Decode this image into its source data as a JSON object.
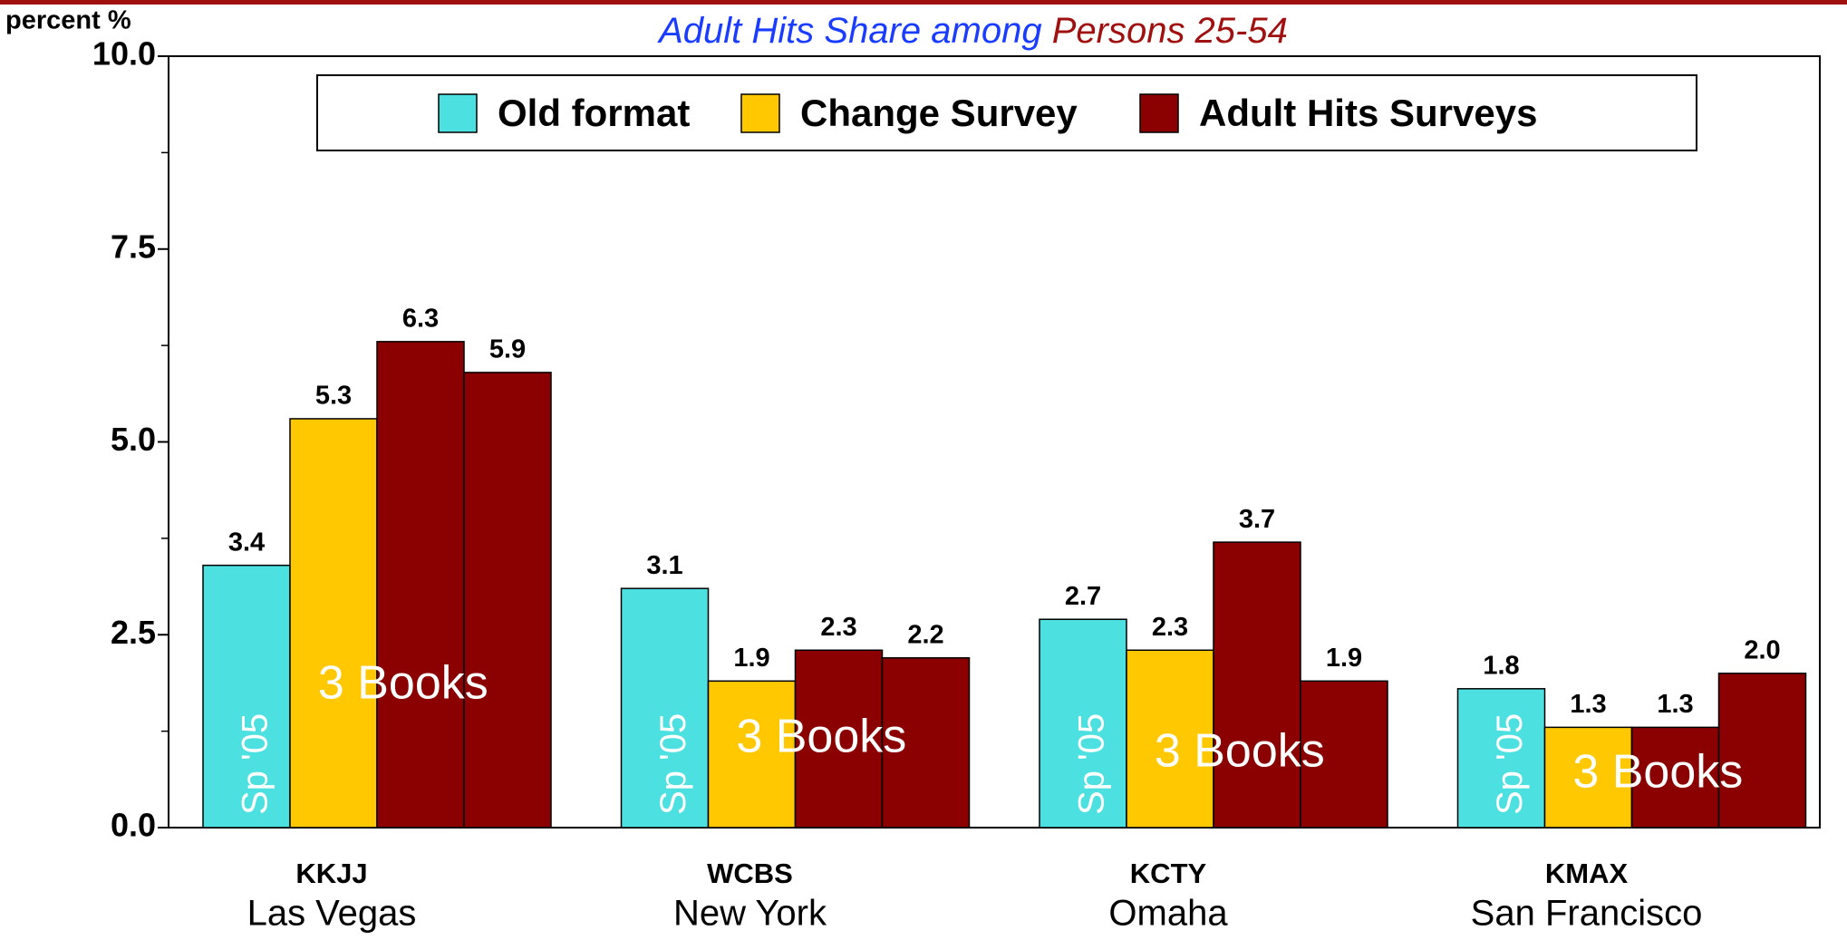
{
  "chart_data": {
    "type": "bar",
    "title": [
      "Adult Hits Share among",
      "Persons 25-54"
    ],
    "y_label": "percent %",
    "categories": [
      "KKJJ",
      "WCBS",
      "KCTY",
      "KMAX"
    ],
    "cities": [
      "Las Vegas",
      "New York",
      "Omaha",
      "San Francisco"
    ],
    "series": [
      {
        "name": "Old format",
        "color": "#4de0e0",
        "values": [
          3.4,
          3.1,
          2.7,
          1.8
        ],
        "value_labels": [
          "3.4",
          "3.1",
          "2.7",
          "1.8"
        ]
      },
      {
        "name": "Change Survey",
        "color": "#ffc800",
        "values": [
          5.3,
          1.9,
          2.3,
          1.3
        ],
        "value_labels": [
          "5.3",
          "1.9",
          "2.3",
          "1.3"
        ]
      },
      {
        "name": "Adult Hits Surveys",
        "color": "#8b0000",
        "values": [
          [
            6.3,
            5.9
          ],
          [
            2.3,
            2.2
          ],
          [
            3.7,
            1.9
          ],
          [
            1.3,
            2.0
          ]
        ],
        "value_labels": [
          [
            "6.3",
            "5.9"
          ],
          [
            "2.3",
            "2.2"
          ],
          [
            "3.7",
            "1.9"
          ],
          [
            "1.3",
            "2.0"
          ]
        ]
      }
    ],
    "annotations": [
      [
        "Sp '05",
        "3 Books"
      ],
      [
        "Sp '05",
        "3 Books"
      ],
      [
        "Sp '05",
        "3 Books"
      ],
      [
        "Sp '05",
        "3 Books"
      ]
    ],
    "ylim": [
      0,
      10
    ],
    "yticks": [
      {
        "value": 0,
        "label": "0.0"
      },
      {
        "value": 2.5,
        "label": "2.5"
      },
      {
        "value": 5,
        "label": "5.0"
      },
      {
        "value": 7.5,
        "label": "7.5"
      },
      {
        "value": 10,
        "label": "10.0"
      }
    ],
    "minor_yticks": [
      1.25,
      3.75,
      6.25,
      8.75
    ]
  }
}
